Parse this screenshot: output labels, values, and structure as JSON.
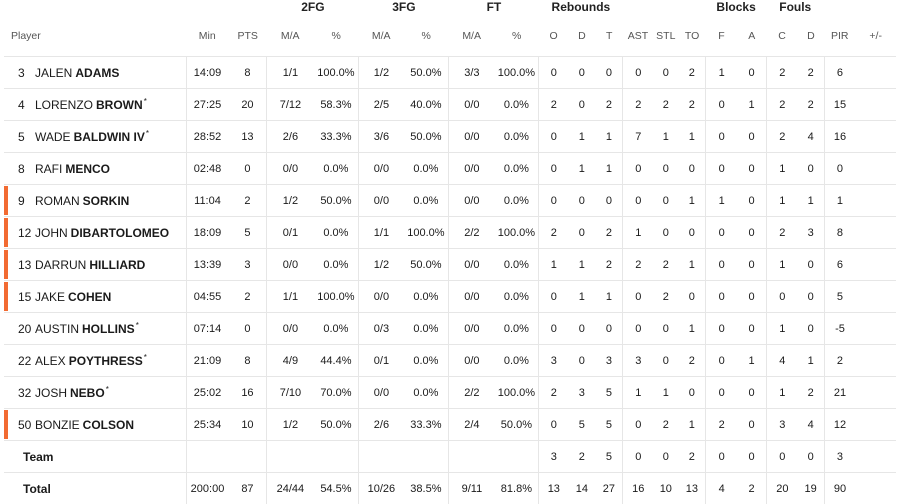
{
  "groups": {
    "fg2": "2FG",
    "fg3": "3FG",
    "ft": "FT",
    "rebounds": "Rebounds",
    "blocks": "Blocks",
    "fouls": "Fouls"
  },
  "columns": {
    "player": "Player",
    "min": "Min",
    "pts": "PTS",
    "fg2_ma": "M/A",
    "fg2_pct": "%",
    "fg3_ma": "M/A",
    "fg3_pct": "%",
    "ft_ma": "M/A",
    "ft_pct": "%",
    "reb_o": "O",
    "reb_d": "D",
    "reb_t": "T",
    "ast": "AST",
    "stl": "STL",
    "to": "TO",
    "blk_f": "F",
    "blk_a": "A",
    "foul_c": "C",
    "foul_d": "D",
    "pir": "PIR",
    "pm": "+/-"
  },
  "accent_color": "#f26b32",
  "players": [
    {
      "num": "3",
      "first": "JALEN",
      "last": "ADAMS",
      "starter": "",
      "marked": false,
      "min": "14:09",
      "pts": "8",
      "fg2_ma": "1/1",
      "fg2_pct": "100.0%",
      "fg3_ma": "1/2",
      "fg3_pct": "50.0%",
      "ft_ma": "3/3",
      "ft_pct": "100.0%",
      "reb_o": "0",
      "reb_d": "0",
      "reb_t": "0",
      "ast": "0",
      "stl": "0",
      "to": "2",
      "blk_f": "1",
      "blk_a": "0",
      "foul_c": "2",
      "foul_d": "2",
      "pir": "6",
      "pm": ""
    },
    {
      "num": "4",
      "first": "LORENZO",
      "last": "BROWN",
      "starter": "*",
      "marked": false,
      "min": "27:25",
      "pts": "20",
      "fg2_ma": "7/12",
      "fg2_pct": "58.3%",
      "fg3_ma": "2/5",
      "fg3_pct": "40.0%",
      "ft_ma": "0/0",
      "ft_pct": "0.0%",
      "reb_o": "2",
      "reb_d": "0",
      "reb_t": "2",
      "ast": "2",
      "stl": "2",
      "to": "2",
      "blk_f": "0",
      "blk_a": "1",
      "foul_c": "2",
      "foul_d": "2",
      "pir": "15",
      "pm": ""
    },
    {
      "num": "5",
      "first": "WADE",
      "last": "BALDWIN IV",
      "starter": "*",
      "marked": false,
      "min": "28:52",
      "pts": "13",
      "fg2_ma": "2/6",
      "fg2_pct": "33.3%",
      "fg3_ma": "3/6",
      "fg3_pct": "50.0%",
      "ft_ma": "0/0",
      "ft_pct": "0.0%",
      "reb_o": "0",
      "reb_d": "1",
      "reb_t": "1",
      "ast": "7",
      "stl": "1",
      "to": "1",
      "blk_f": "0",
      "blk_a": "0",
      "foul_c": "2",
      "foul_d": "4",
      "pir": "16",
      "pm": ""
    },
    {
      "num": "8",
      "first": "RAFI",
      "last": "MENCO",
      "starter": "",
      "marked": false,
      "min": "02:48",
      "pts": "0",
      "fg2_ma": "0/0",
      "fg2_pct": "0.0%",
      "fg3_ma": "0/0",
      "fg3_pct": "0.0%",
      "ft_ma": "0/0",
      "ft_pct": "0.0%",
      "reb_o": "0",
      "reb_d": "1",
      "reb_t": "1",
      "ast": "0",
      "stl": "0",
      "to": "0",
      "blk_f": "0",
      "blk_a": "0",
      "foul_c": "1",
      "foul_d": "0",
      "pir": "0",
      "pm": ""
    },
    {
      "num": "9",
      "first": "ROMAN",
      "last": "SORKIN",
      "starter": "",
      "marked": true,
      "min": "11:04",
      "pts": "2",
      "fg2_ma": "1/2",
      "fg2_pct": "50.0%",
      "fg3_ma": "0/0",
      "fg3_pct": "0.0%",
      "ft_ma": "0/0",
      "ft_pct": "0.0%",
      "reb_o": "0",
      "reb_d": "0",
      "reb_t": "0",
      "ast": "0",
      "stl": "0",
      "to": "1",
      "blk_f": "1",
      "blk_a": "0",
      "foul_c": "1",
      "foul_d": "1",
      "pir": "1",
      "pm": ""
    },
    {
      "num": "12",
      "first": "JOHN",
      "last": "DIBARTOLOMEO",
      "starter": "",
      "marked": true,
      "min": "18:09",
      "pts": "5",
      "fg2_ma": "0/1",
      "fg2_pct": "0.0%",
      "fg3_ma": "1/1",
      "fg3_pct": "100.0%",
      "ft_ma": "2/2",
      "ft_pct": "100.0%",
      "reb_o": "2",
      "reb_d": "0",
      "reb_t": "2",
      "ast": "1",
      "stl": "0",
      "to": "0",
      "blk_f": "0",
      "blk_a": "0",
      "foul_c": "2",
      "foul_d": "3",
      "pir": "8",
      "pm": ""
    },
    {
      "num": "13",
      "first": "DARRUN",
      "last": "HILLIARD",
      "starter": "",
      "marked": true,
      "min": "13:39",
      "pts": "3",
      "fg2_ma": "0/0",
      "fg2_pct": "0.0%",
      "fg3_ma": "1/2",
      "fg3_pct": "50.0%",
      "ft_ma": "0/0",
      "ft_pct": "0.0%",
      "reb_o": "1",
      "reb_d": "1",
      "reb_t": "2",
      "ast": "2",
      "stl": "2",
      "to": "1",
      "blk_f": "0",
      "blk_a": "0",
      "foul_c": "1",
      "foul_d": "0",
      "pir": "6",
      "pm": ""
    },
    {
      "num": "15",
      "first": "JAKE",
      "last": "COHEN",
      "starter": "",
      "marked": true,
      "min": "04:55",
      "pts": "2",
      "fg2_ma": "1/1",
      "fg2_pct": "100.0%",
      "fg3_ma": "0/0",
      "fg3_pct": "0.0%",
      "ft_ma": "0/0",
      "ft_pct": "0.0%",
      "reb_o": "0",
      "reb_d": "1",
      "reb_t": "1",
      "ast": "0",
      "stl": "2",
      "to": "0",
      "blk_f": "0",
      "blk_a": "0",
      "foul_c": "0",
      "foul_d": "0",
      "pir": "5",
      "pm": ""
    },
    {
      "num": "20",
      "first": "AUSTIN",
      "last": "HOLLINS",
      "starter": "*",
      "marked": false,
      "min": "07:14",
      "pts": "0",
      "fg2_ma": "0/0",
      "fg2_pct": "0.0%",
      "fg3_ma": "0/3",
      "fg3_pct": "0.0%",
      "ft_ma": "0/0",
      "ft_pct": "0.0%",
      "reb_o": "0",
      "reb_d": "0",
      "reb_t": "0",
      "ast": "0",
      "stl": "0",
      "to": "1",
      "blk_f": "0",
      "blk_a": "0",
      "foul_c": "1",
      "foul_d": "0",
      "pir": "-5",
      "pm": ""
    },
    {
      "num": "22",
      "first": "ALEX",
      "last": "POYTHRESS",
      "starter": "*",
      "marked": false,
      "min": "21:09",
      "pts": "8",
      "fg2_ma": "4/9",
      "fg2_pct": "44.4%",
      "fg3_ma": "0/1",
      "fg3_pct": "0.0%",
      "ft_ma": "0/0",
      "ft_pct": "0.0%",
      "reb_o": "3",
      "reb_d": "0",
      "reb_t": "3",
      "ast": "3",
      "stl": "0",
      "to": "2",
      "blk_f": "0",
      "blk_a": "1",
      "foul_c": "4",
      "foul_d": "1",
      "pir": "2",
      "pm": ""
    },
    {
      "num": "32",
      "first": "JOSH",
      "last": "NEBO",
      "starter": "*",
      "marked": false,
      "min": "25:02",
      "pts": "16",
      "fg2_ma": "7/10",
      "fg2_pct": "70.0%",
      "fg3_ma": "0/0",
      "fg3_pct": "0.0%",
      "ft_ma": "2/2",
      "ft_pct": "100.0%",
      "reb_o": "2",
      "reb_d": "3",
      "reb_t": "5",
      "ast": "1",
      "stl": "1",
      "to": "0",
      "blk_f": "0",
      "blk_a": "0",
      "foul_c": "1",
      "foul_d": "2",
      "pir": "21",
      "pm": ""
    },
    {
      "num": "50",
      "first": "BONZIE",
      "last": "COLSON",
      "starter": "",
      "marked": true,
      "min": "25:34",
      "pts": "10",
      "fg2_ma": "1/2",
      "fg2_pct": "50.0%",
      "fg3_ma": "2/6",
      "fg3_pct": "33.3%",
      "ft_ma": "2/4",
      "ft_pct": "50.0%",
      "reb_o": "0",
      "reb_d": "5",
      "reb_t": "5",
      "ast": "0",
      "stl": "2",
      "to": "1",
      "blk_f": "2",
      "blk_a": "0",
      "foul_c": "3",
      "foul_d": "4",
      "pir": "12",
      "pm": ""
    }
  ],
  "team": {
    "label": "Team",
    "min": "",
    "pts": "",
    "fg2_ma": "",
    "fg2_pct": "",
    "fg3_ma": "",
    "fg3_pct": "",
    "ft_ma": "",
    "ft_pct": "",
    "reb_o": "3",
    "reb_d": "2",
    "reb_t": "5",
    "ast": "0",
    "stl": "0",
    "to": "2",
    "blk_f": "0",
    "blk_a": "0",
    "foul_c": "0",
    "foul_d": "0",
    "pir": "3",
    "pm": ""
  },
  "total": {
    "label": "Total",
    "min": "200:00",
    "pts": "87",
    "fg2_ma": "24/44",
    "fg2_pct": "54.5%",
    "fg3_ma": "10/26",
    "fg3_pct": "38.5%",
    "ft_ma": "9/11",
    "ft_pct": "81.8%",
    "reb_o": "13",
    "reb_d": "14",
    "reb_t": "27",
    "ast": "16",
    "stl": "10",
    "to": "13",
    "blk_f": "4",
    "blk_a": "2",
    "foul_c": "20",
    "foul_d": "19",
    "pir": "90",
    "pm": ""
  }
}
